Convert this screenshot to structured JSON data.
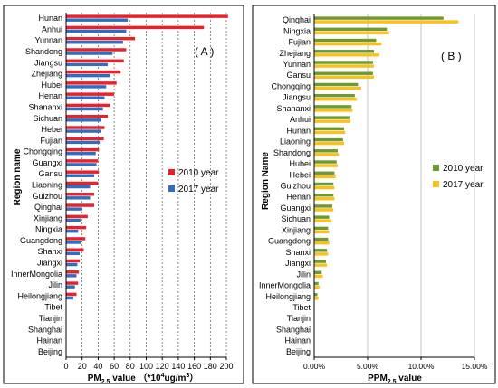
{
  "colors": {
    "a_2010": "#e8212a",
    "a_2017": "#2e6fc4",
    "b_2010": "#6e9a33",
    "b_2017": "#f9c11a"
  },
  "chart_data": [
    {
      "type": "bar",
      "orientation": "horizontal",
      "panel_label": "( A )",
      "xlabel": "PM2.5 value （*10⁴ug/m³）",
      "xlabel_parts": {
        "pre": "PM",
        "sub": "2.5",
        "mid": " value （*10",
        "sup1": "4",
        "mid2": "ug/m",
        "sup2": "3",
        "post": "）"
      },
      "ylabel": "Region name",
      "xlim": [
        0,
        200
      ],
      "xticks": [
        0,
        20,
        40,
        60,
        80,
        100,
        120,
        140,
        160,
        180,
        200
      ],
      "grid": "vertical dotted",
      "legend_position": "right-middle",
      "categories": [
        "Hunan",
        "Anhui",
        "Yunnan",
        "Shandong",
        "Jiangsu",
        "Zhejiang",
        "Hubei",
        "Henan",
        "Shananxi",
        "Sichuan",
        "Hebei",
        "Fujian",
        "Chongqing",
        "Guangxi",
        "Gansu",
        "Liaoning",
        "Guizhou",
        "Qinghai",
        "Xinjiang",
        "Ningxia",
        "Guangdong",
        "Shanxi",
        "Jiangxi",
        "InnerMongolia",
        "Jilin",
        "Heilongjiang",
        "Tibet",
        "Tianjin",
        "Shanghai",
        "Hainan",
        "Beijing"
      ],
      "series": [
        {
          "name": "2010 year",
          "values": [
            202,
            172,
            86,
            75,
            72,
            68,
            63,
            60,
            55,
            52,
            48,
            47,
            41,
            40,
            41,
            40,
            35,
            35,
            27,
            25,
            24,
            22,
            17,
            16,
            15,
            13,
            0,
            0,
            0,
            0,
            0
          ]
        },
        {
          "name": "2017 year",
          "values": [
            77,
            75,
            71,
            58,
            52,
            55,
            50,
            48,
            46,
            44,
            43,
            42,
            37,
            38,
            35,
            30,
            30,
            20,
            18,
            15,
            19,
            17,
            14,
            13,
            11,
            9,
            0,
            0,
            0,
            0,
            0
          ]
        }
      ]
    },
    {
      "type": "bar",
      "orientation": "horizontal",
      "panel_label": "( B )",
      "xlabel": "PPM2.5 value",
      "xlabel_parts": {
        "pre": "PPM",
        "sub": "2.5",
        "post": " value"
      },
      "ylabel": "Region Name",
      "xlim": [
        0,
        15
      ],
      "xticks": [
        0,
        5,
        10,
        15
      ],
      "xtick_labels": [
        "0.00%",
        "5.00%",
        "10.00%",
        "15.00%"
      ],
      "value_unit": "%",
      "grid": "vertical solid",
      "legend_position": "right-middle",
      "categories": [
        "Qinghai",
        "Ningxia",
        "Fujian",
        "Zhejiang",
        "Yunnan",
        "Gansu",
        "Chongqing",
        "Jiangsu",
        "Shananxi",
        "Anhui",
        "Hunan",
        "Liaoning",
        "Shandong",
        "Hubei",
        "Hebei",
        "Guizhou",
        "Henan",
        "Guangxi",
        "Sichuan",
        "Xinjiang",
        "Guangdong",
        "Shanxi",
        "Jiangxi",
        "Jilin",
        "InnerMongolia",
        "Heilongjiang",
        "Tibet",
        "Tianjin",
        "Shanghai",
        "Hainan",
        "Beijing"
      ],
      "series": [
        {
          "name": "2010 year",
          "values": [
            12.1,
            6.8,
            5.8,
            5.6,
            5.5,
            5.5,
            4.1,
            3.8,
            3.5,
            3.3,
            2.8,
            2.7,
            2.2,
            2.1,
            1.9,
            1.8,
            1.8,
            1.7,
            1.4,
            1.3,
            1.3,
            1.2,
            1.1,
            0.7,
            0.4,
            0.3,
            0,
            0,
            0,
            0,
            0
          ]
        },
        {
          "name": "2017 year",
          "values": [
            13.5,
            7.0,
            6.3,
            6.1,
            5.6,
            5.6,
            4.4,
            4.0,
            3.6,
            3.4,
            2.9,
            2.8,
            2.3,
            2.2,
            2.0,
            1.9,
            1.9,
            1.8,
            1.6,
            1.4,
            1.4,
            1.3,
            1.2,
            0.8,
            0.5,
            0.4,
            0,
            0,
            0,
            0,
            0
          ]
        }
      ]
    }
  ]
}
